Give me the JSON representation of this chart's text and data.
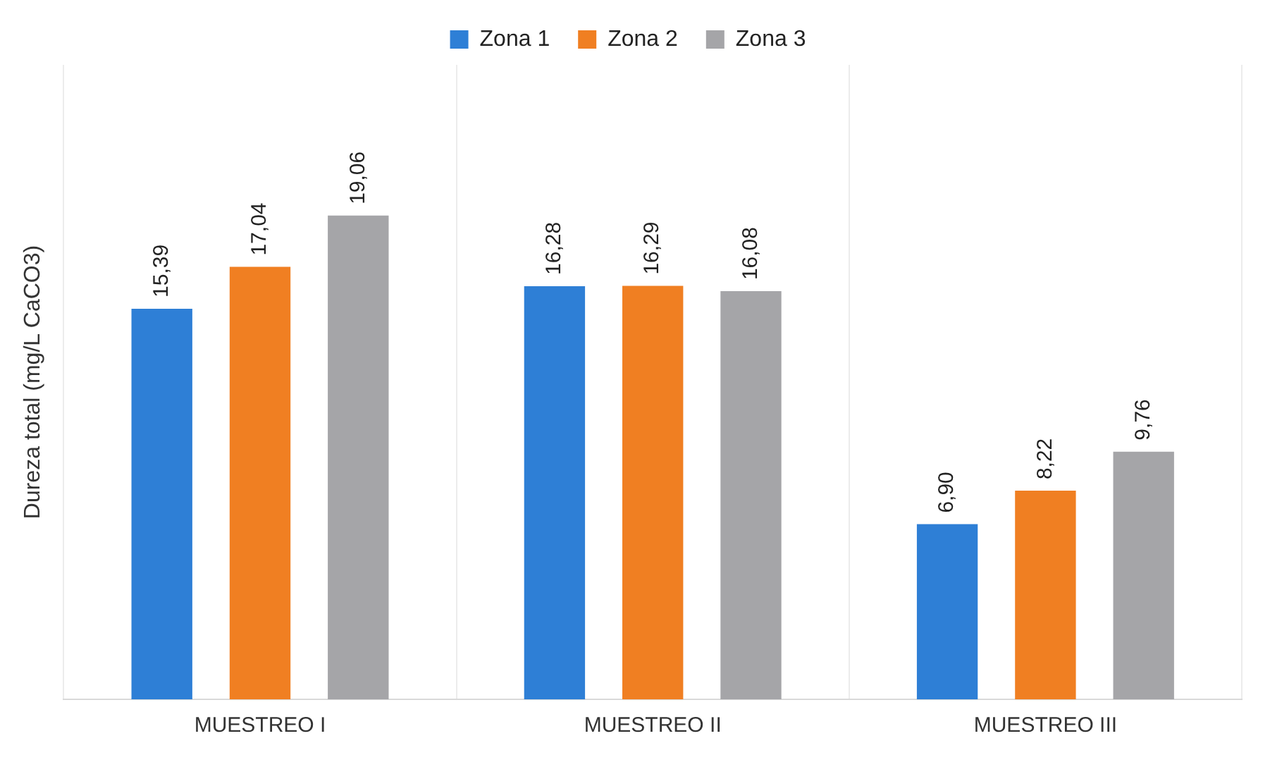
{
  "chart_data": {
    "type": "bar",
    "ylabel": "Dureza total (mg/L CaCO3)",
    "categories": [
      "MUESTREO I",
      "MUESTREO II",
      "MUESTREO III"
    ],
    "series": [
      {
        "name": "Zona 1",
        "color": "#2e7fd6",
        "values": [
          15.39,
          16.28,
          6.9
        ],
        "value_labels": [
          "15,39",
          "16,28",
          "6,90"
        ]
      },
      {
        "name": "Zona 2",
        "color": "#f07f22",
        "values": [
          17.04,
          16.29,
          8.22
        ],
        "value_labels": [
          "17,04",
          "16,29",
          "8,22"
        ]
      },
      {
        "name": "Zona 3",
        "color": "#a5a5a8",
        "values": [
          19.06,
          16.08,
          9.76
        ],
        "value_labels": [
          "19,06",
          "16,08",
          "9,76"
        ]
      }
    ],
    "ylim": [
      0,
      25
    ],
    "tick_labels": "x",
    "grid": "x",
    "legend": "top"
  }
}
